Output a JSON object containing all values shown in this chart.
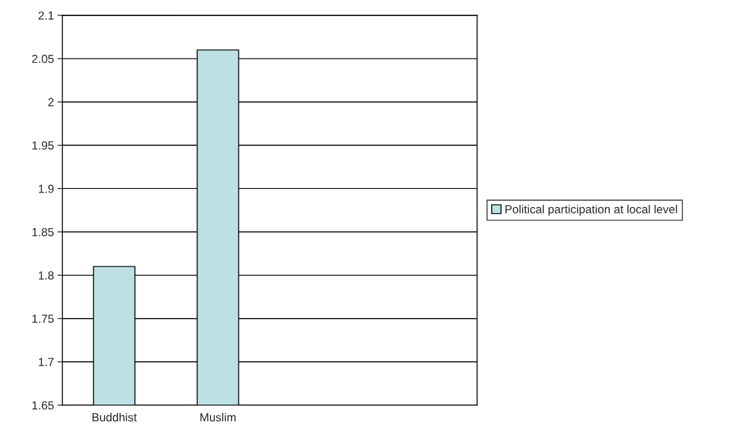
{
  "chart_data": {
    "type": "bar",
    "categories": [
      "Buddhist",
      "Muslim",
      null,
      null
    ],
    "series": [
      {
        "name": "Political participation at local level",
        "color": "#bde0e4",
        "values": [
          1.81,
          2.06,
          null,
          null
        ]
      }
    ],
    "ylim": [
      1.65,
      2.1
    ],
    "yticks": [
      1.65,
      1.7,
      1.75,
      1.8,
      1.85,
      1.9,
      1.95,
      2,
      2.05,
      2.1
    ],
    "grid": "y",
    "legend": "right"
  }
}
